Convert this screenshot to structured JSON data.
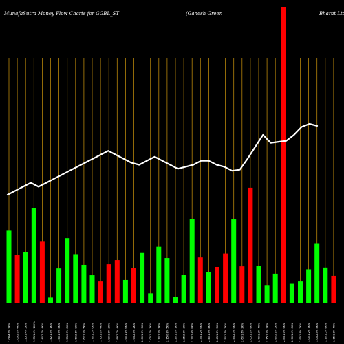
{
  "chart_data": {
    "type": "bar",
    "title_left": "MunafaSutra  Money Flow  Charts for GGBL_ST",
    "title_mid": "(Ganesh Green",
    "title_right": "Bharat Ltd",
    "colors": {
      "background": "#000000",
      "up": "#00ff00",
      "down": "#ff0000",
      "grid": "#b8860b",
      "line": "#ffffff"
    },
    "bar_max": 100,
    "bars": [
      {
        "value": 24.5,
        "color": "up"
      },
      {
        "value": 16.4,
        "color": "down"
      },
      {
        "value": 17.3,
        "color": "up"
      },
      {
        "value": 32.1,
        "color": "up"
      },
      {
        "value": 20.8,
        "color": "down"
      },
      {
        "value": 2.0,
        "color": "up"
      },
      {
        "value": 11.8,
        "color": "up"
      },
      {
        "value": 22.0,
        "color": "up"
      },
      {
        "value": 16.6,
        "color": "up"
      },
      {
        "value": 13.0,
        "color": "up"
      },
      {
        "value": 9.5,
        "color": "up"
      },
      {
        "value": 7.4,
        "color": "down"
      },
      {
        "value": 13.2,
        "color": "down"
      },
      {
        "value": 14.6,
        "color": "down"
      },
      {
        "value": 7.9,
        "color": "up"
      },
      {
        "value": 12.0,
        "color": "down"
      },
      {
        "value": 17.0,
        "color": "up"
      },
      {
        "value": 3.4,
        "color": "up"
      },
      {
        "value": 19.1,
        "color": "up"
      },
      {
        "value": 15.3,
        "color": "up"
      },
      {
        "value": 2.3,
        "color": "up"
      },
      {
        "value": 9.7,
        "color": "up"
      },
      {
        "value": 28.5,
        "color": "up"
      },
      {
        "value": 15.5,
        "color": "down"
      },
      {
        "value": 10.6,
        "color": "up"
      },
      {
        "value": 12.3,
        "color": "down"
      },
      {
        "value": 16.8,
        "color": "down"
      },
      {
        "value": 28.3,
        "color": "up"
      },
      {
        "value": 12.5,
        "color": "down"
      },
      {
        "value": 39.0,
        "color": "down"
      },
      {
        "value": 12.6,
        "color": "up"
      },
      {
        "value": 6.2,
        "color": "up"
      },
      {
        "value": 10.0,
        "color": "up"
      },
      {
        "value": 100,
        "color": "down"
      },
      {
        "value": 6.6,
        "color": "up"
      },
      {
        "value": 7.4,
        "color": "up"
      },
      {
        "value": 11.5,
        "color": "up"
      },
      {
        "value": 20.3,
        "color": "up"
      },
      {
        "value": 12.1,
        "color": "up"
      },
      {
        "value": 9.3,
        "color": "down"
      }
    ],
    "price_line": [
      44,
      46,
      48,
      50,
      48,
      50,
      52,
      54,
      56,
      58,
      60,
      62,
      64,
      66,
      64,
      62,
      60,
      59,
      61,
      63,
      61,
      59,
      57,
      58,
      59,
      61,
      61,
      59,
      58,
      56,
      56.5,
      62,
      68,
      74,
      70,
      70.5,
      71,
      74,
      78,
      79.5,
      78.5
    ],
    "x_tick_labels": [
      "1.08 4.0% 2K%",
      "1.09 2.0% 4K%",
      "1.25 1.4% 5K%",
      "1.35 1.4% 10K%",
      "1.40 2.3% 4K%",
      "1.42 1.5% 1K%",
      "1.50 1.9% 5K%",
      "1.55 0.9% 8K%",
      "1.60 2.1% 9K%",
      "1.62 1.2% 5K%",
      "1.70 1.5% 6K%",
      "1.75 1.0% 4K%",
      "1.80 1.8% 3K%",
      "1.88 2.2% 4K%",
      "1.90 1.1% 6K%",
      "1.95 2.5% 2K%",
      "2.00 1.6% 9K%",
      "2.05 1.3% 1K%",
      "2.10 1.7% 7K%",
      "2.15 0.8% 5K%",
      "2.20 1.9% 1K%",
      "2.25 2.0% 3K%",
      "2.30 1.4% 8K%",
      "2.35 1.2% 6K%",
      "2.40 1.5% 4K%",
      "2.45 1.8% 5K%",
      "2.50 1.1% 7K%",
      "2.55 2.3% 9K%",
      "2.60 1.6% 2K%",
      "2.65 1.9% 8K%",
      "2.70 1.3% 4K%",
      "2.75 1.7% 3K%",
      "2.80 2.1% 5K%",
      "2.85 1.0% 9K%",
      "2.90 1.4% 6K%",
      "2.95 1.8% 2K%",
      "3.00 1.2% 7K%",
      "3.05 2.4% 5K%",
      "3.10 1.5% 8K%",
      "3.15 1.9% 4K%"
    ]
  }
}
